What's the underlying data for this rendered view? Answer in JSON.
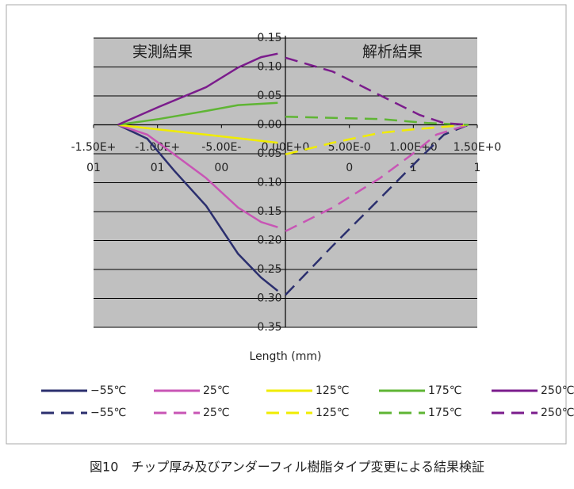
{
  "chart_data": {
    "type": "line",
    "annotations": [
      "実測結果",
      "解析結果"
    ],
    "xlabel": "Length (mm)",
    "caption": "図10　チップ厚み及びアンダーフィル樹脂タイプ変更による結果検証",
    "xlim": [
      -1.5,
      1.5
    ],
    "xticks": [
      {
        "value": -1.5,
        "label": [
          "-1.50E+",
          "01"
        ]
      },
      {
        "value": -1.0,
        "label": [
          "-1.00E+",
          "01"
        ]
      },
      {
        "value": -0.5,
        "label": [
          "-5.00E-",
          "00"
        ]
      },
      {
        "value": 0,
        "label": [
          "0.00E+0"
        ]
      },
      {
        "value": 0.5,
        "label": [
          "5.00E-0",
          "0"
        ]
      },
      {
        "value": 1.0,
        "label": [
          "1.00E+0",
          "1"
        ]
      },
      {
        "value": 1.5,
        "label": [
          "1.50E+0",
          "1"
        ]
      }
    ],
    "ylim": [
      -0.35,
      0.15
    ],
    "yticks": [
      0.15,
      {
        "value": 0.1,
        "label": "0.10"
      },
      0.05,
      {
        "value": 0,
        "label": "0.00"
      },
      {
        "value": -0.05,
        "label": "0.05"
      },
      {
        "value": -0.1,
        "label": "0.10"
      },
      {
        "value": -0.15,
        "label": "0.15"
      },
      {
        "value": -0.2,
        "label": "0.20"
      },
      {
        "value": -0.25,
        "label": "0.25"
      },
      {
        "value": -0.3,
        "label": "0.30"
      },
      {
        "value": -0.35,
        "label": "0.35"
      }
    ],
    "grid": true,
    "series": [
      {
        "name": "−55℃",
        "color": "#2b2f6e",
        "dash": false,
        "x": [
          -1.31,
          -1.08,
          -0.87,
          -0.62,
          -0.37,
          -0.19,
          -0.06
        ],
        "values": [
          0,
          -0.024,
          -0.079,
          -0.14,
          -0.223,
          -0.264,
          -0.287
        ]
      },
      {
        "name": "25℃",
        "color": "#c855b5",
        "dash": false,
        "x": [
          -1.31,
          -1.08,
          -0.87,
          -0.62,
          -0.37,
          -0.19,
          -0.06
        ],
        "values": [
          0,
          -0.017,
          -0.051,
          -0.092,
          -0.143,
          -0.168,
          -0.177
        ]
      },
      {
        "name": "125℃",
        "color": "#f0ec00",
        "dash": false,
        "x": [
          -1.31,
          -0.99,
          -0.62,
          -0.06
        ],
        "values": [
          0,
          -0.008,
          -0.017,
          -0.031
        ]
      },
      {
        "name": "175℃",
        "color": "#5fb534",
        "dash": false,
        "x": [
          -1.31,
          -0.99,
          -0.62,
          -0.37,
          -0.06
        ],
        "values": [
          0,
          0.01,
          0.024,
          0.034,
          0.038
        ]
      },
      {
        "name": "250℃",
        "color": "#7b1c8c",
        "dash": false,
        "x": [
          -1.31,
          -0.99,
          -0.62,
          -0.37,
          -0.19,
          -0.06
        ],
        "values": [
          0,
          0.031,
          0.065,
          0.099,
          0.117,
          0.123
        ]
      },
      {
        "name": "−55℃",
        "color": "#2b2f6e",
        "dash": true,
        "x": [
          0,
          0.37,
          0.74,
          1.05,
          1.24,
          1.43
        ],
        "values": [
          -0.294,
          -0.209,
          -0.127,
          -0.058,
          -0.017,
          0
        ]
      },
      {
        "name": "25℃",
        "color": "#c855b5",
        "dash": true,
        "x": [
          0,
          0.37,
          0.74,
          0.99,
          1.18,
          1.43
        ],
        "values": [
          -0.184,
          -0.143,
          -0.092,
          -0.051,
          -0.017,
          0
        ]
      },
      {
        "name": "125℃",
        "color": "#f0ec00",
        "dash": true,
        "x": [
          0,
          0.37,
          0.74,
          0.99,
          1.43
        ],
        "values": [
          -0.051,
          -0.031,
          -0.014,
          -0.008,
          0
        ]
      },
      {
        "name": "175℃",
        "color": "#5fb534",
        "dash": true,
        "x": [
          0,
          0.74,
          1.12,
          1.43
        ],
        "values": [
          0.014,
          0.01,
          0.003,
          0
        ]
      },
      {
        "name": "250℃",
        "color": "#7b1c8c",
        "dash": true,
        "x": [
          0,
          0.37,
          0.74,
          1.05,
          1.24,
          1.43
        ],
        "values": [
          0.116,
          0.092,
          0.051,
          0.017,
          0.003,
          0
        ]
      }
    ]
  }
}
